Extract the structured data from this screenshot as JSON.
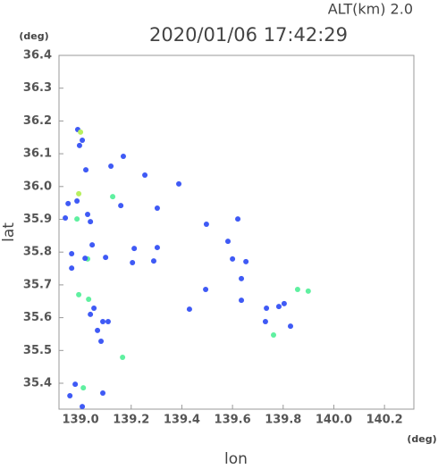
{
  "chart_data": {
    "type": "scatter",
    "title": "2020/01/06 17:42:29",
    "subtitle": "ALT(km) 2.0",
    "x_label": "lon",
    "y_label": "lat",
    "x_unit": "(deg)",
    "y_unit": "(deg)",
    "x": [
      138.989,
      139.0,
      139.007,
      138.996,
      139.021,
      138.993,
      138.986,
      138.951,
      138.94,
      138.986,
      139.028,
      139.039,
      139.046,
      139.028,
      138.965,
      139.018,
      138.965,
      139.099,
      139.12,
      139.127,
      139.159,
      139.169,
      139.303,
      139.254,
      139.388,
      139.497,
      139.621,
      139.582,
      139.6,
      139.653,
      139.43,
      139.494,
      139.635,
      139.635,
      139.734,
      139.73,
      139.783,
      139.804,
      139.857,
      139.899,
      139.829,
      139.762,
      138.993,
      139.032,
      139.039,
      139.053,
      139.088,
      139.067,
      139.081,
      139.109,
      139.166,
      138.979,
      139.011,
      139.088,
      139.007,
      138.958,
      139.212,
      139.289,
      139.205,
      139.303
    ],
    "values": [
      36.174,
      36.166,
      36.141,
      36.125,
      36.051,
      35.978,
      35.956,
      35.948,
      35.904,
      35.901,
      35.915,
      35.893,
      35.822,
      35.779,
      35.795,
      35.781,
      35.751,
      35.784,
      36.062,
      35.969,
      35.942,
      36.092,
      35.934,
      36.035,
      36.008,
      35.885,
      35.901,
      35.833,
      35.779,
      35.771,
      35.626,
      35.686,
      35.719,
      35.653,
      35.629,
      35.588,
      35.634,
      35.643,
      35.686,
      35.681,
      35.574,
      35.547,
      35.67,
      35.656,
      35.61,
      35.629,
      35.588,
      35.561,
      35.528,
      35.588,
      35.479,
      35.397,
      35.386,
      35.37,
      35.329,
      35.362,
      35.811,
      35.773,
      35.768,
      35.814
    ],
    "colors": [
      "#3f5af5",
      "#b8f060",
      "#3f5af5",
      "#3f5af5",
      "#3f5af5",
      "#b8f060",
      "#3f5af5",
      "#3f5af5",
      "#3f5af5",
      "#5ff0a0",
      "#3f5af5",
      "#3f5af5",
      "#3f5af5",
      "#5ff0a0",
      "#3f5af5",
      "#3f5af5",
      "#3f5af5",
      "#3f5af5",
      "#3f5af5",
      "#5ff0a0",
      "#3f5af5",
      "#3f5af5",
      "#3f5af5",
      "#3f5af5",
      "#3f5af5",
      "#3f5af5",
      "#3f5af5",
      "#3f5af5",
      "#3f5af5",
      "#3f5af5",
      "#3f5af5",
      "#3f5af5",
      "#3f5af5",
      "#3f5af5",
      "#3f5af5",
      "#3f5af5",
      "#3f5af5",
      "#3f5af5",
      "#5ff0a0",
      "#5ff0a0",
      "#3f5af5",
      "#5ff0a0",
      "#5ff0a0",
      "#5ff0a0",
      "#3f5af5",
      "#3f5af5",
      "#3f5af5",
      "#3f5af5",
      "#3f5af5",
      "#3f5af5",
      "#5ff0a0",
      "#3f5af5",
      "#5ff0a0",
      "#3f5af5",
      "#3f5af5",
      "#3f5af5",
      "#3f5af5",
      "#3f5af5",
      "#3f5af5",
      "#3f5af5"
    ],
    "xlim": [
      138.915,
      140.316
    ],
    "ylim": [
      35.321,
      36.4
    ],
    "xticks": [
      {
        "value": 139.0,
        "label": "139.0"
      },
      139.2,
      139.4,
      139.6,
      139.8,
      {
        "value": 140.0,
        "label": "140.0"
      },
      140.2
    ],
    "yticks": [
      {
        "value": 35.4,
        "label": "35.4"
      },
      35.5,
      35.6,
      35.7,
      35.8,
      35.9,
      {
        "value": 36.0,
        "label": "36.0"
      },
      36.1,
      36.2,
      36.3,
      36.4
    ]
  }
}
